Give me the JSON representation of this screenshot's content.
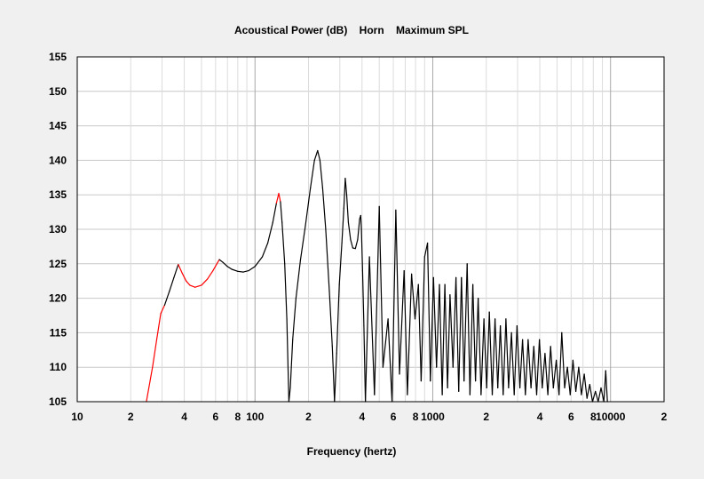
{
  "chart_data": {
    "type": "line",
    "title": "Acoustical Power (dB)    Horn    Maximum SPL",
    "xlabel": "Frequency (hertz)",
    "ylabel": "",
    "x_scale": "log",
    "xlim": [
      10,
      20000
    ],
    "ylim": [
      105,
      155
    ],
    "grid": true,
    "y_ticks": [
      "105",
      "110",
      "115",
      "120",
      "125",
      "130",
      "135",
      "140",
      "145",
      "150",
      "155"
    ],
    "x_ticks": [
      {
        "value": 10,
        "label": "10"
      },
      {
        "value": 20,
        "label": "2"
      },
      {
        "value": 40,
        "label": "4"
      },
      {
        "value": 60,
        "label": "6"
      },
      {
        "value": 80,
        "label": "8"
      },
      {
        "value": 100,
        "label": "100"
      },
      {
        "value": 200,
        "label": "2"
      },
      {
        "value": 400,
        "label": "4"
      },
      {
        "value": 600,
        "label": "6"
      },
      {
        "value": 800,
        "label": "8"
      },
      {
        "value": 1000,
        "label": "1000"
      },
      {
        "value": 2000,
        "label": "2"
      },
      {
        "value": 4000,
        "label": "4"
      },
      {
        "value": 6000,
        "label": "6"
      },
      {
        "value": 8000,
        "label": "8"
      },
      {
        "value": 10000,
        "label": "10000"
      },
      {
        "value": 20000,
        "label": "2"
      }
    ],
    "colors": {
      "segment_warn": "#ff0000",
      "line": "#000000",
      "grid": "#c8c8c8",
      "plot_bg": "#ffffff"
    },
    "series": [
      {
        "points": [
          [
            24.5,
            105
          ],
          [
            26.5,
            110
          ],
          [
            28,
            114
          ],
          [
            29.5,
            117.8
          ],
          [
            31,
            119
          ],
          [
            33,
            121
          ],
          [
            35,
            123
          ],
          [
            37,
            124.9
          ],
          [
            39,
            123.6
          ],
          [
            41,
            122.5
          ],
          [
            43,
            121.9
          ],
          [
            46,
            121.6
          ],
          [
            50,
            121.9
          ],
          [
            54,
            122.8
          ],
          [
            58,
            124
          ],
          [
            61,
            125
          ],
          [
            63,
            125.6
          ],
          [
            66,
            125.2
          ],
          [
            70,
            124.6
          ],
          [
            74,
            124.2
          ],
          [
            80,
            123.9
          ],
          [
            86,
            123.8
          ],
          [
            92,
            124
          ],
          [
            100,
            124.6
          ],
          [
            110,
            126
          ],
          [
            118,
            128
          ],
          [
            126,
            131
          ],
          [
            132,
            133.8
          ],
          [
            136,
            135.2
          ],
          [
            139,
            134
          ],
          [
            142,
            131
          ],
          [
            147,
            125
          ],
          [
            151,
            117
          ],
          [
            155,
            105
          ],
          [
            158,
            107
          ],
          [
            163,
            114
          ],
          [
            170,
            120
          ],
          [
            180,
            125.5
          ],
          [
            192,
            130.5
          ],
          [
            205,
            136
          ],
          [
            216,
            140
          ],
          [
            225,
            141.4
          ],
          [
            232,
            140
          ],
          [
            240,
            136
          ],
          [
            250,
            130
          ],
          [
            262,
            121
          ],
          [
            272,
            113
          ],
          [
            280,
            105
          ],
          [
            288,
            112
          ],
          [
            298,
            122
          ],
          [
            308,
            128
          ],
          [
            316,
            133
          ],
          [
            322,
            137.4
          ],
          [
            328,
            135
          ],
          [
            335,
            131
          ],
          [
            345,
            128.5
          ],
          [
            355,
            127.3
          ],
          [
            367,
            127.2
          ],
          [
            378,
            128.5
          ],
          [
            388,
            131.5
          ],
          [
            393,
            132
          ],
          [
            397,
            130
          ],
          [
            403,
            124
          ],
          [
            410,
            116
          ],
          [
            418,
            105
          ]
        ]
      }
    ]
  }
}
